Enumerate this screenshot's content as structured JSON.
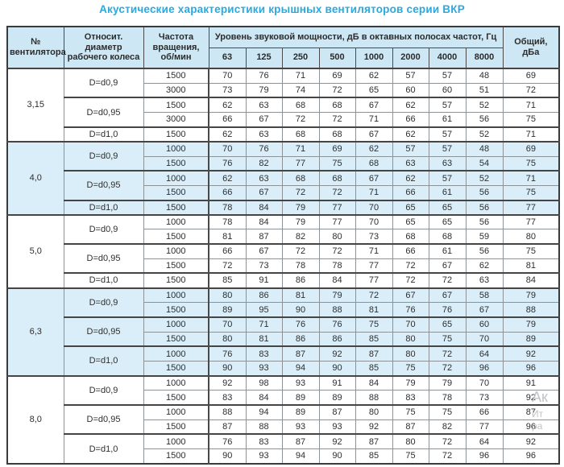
{
  "page": {
    "title": "Акустические характеристики крышных вентиляторов серии ВКР"
  },
  "colors": {
    "title_accent": "#2aa9e0",
    "header_bg": "#cee7f4",
    "band_row_bg": "#daeef9",
    "border_dark": "#454545",
    "border_light": "#8d9296"
  },
  "table": {
    "headers": {
      "fan": "№ вентилятора",
      "diameter": "Относит. диаметр рабочего колеса",
      "speed": "Частота вращения, об/мин",
      "octave_title": "Уровень звуковой мощности, дБ в октавных полосах частот, Гц",
      "total": "Общий, дБа"
    },
    "octave_labels": [
      "63",
      "125",
      "250",
      "500",
      "1000",
      "2000",
      "4000",
      "8000"
    ],
    "groups": [
      {
        "fan": "3,15",
        "shaded": false,
        "subgroups": [
          {
            "diameter": "D=d0,9",
            "rows": [
              {
                "speed": "1500",
                "values": [
                  70,
                  76,
                  71,
                  69,
                  62,
                  57,
                  57,
                  48
                ],
                "total": 69
              },
              {
                "speed": "3000",
                "values": [
                  73,
                  79,
                  74,
                  72,
                  65,
                  60,
                  60,
                  51
                ],
                "total": 72
              }
            ]
          },
          {
            "diameter": "D=d0,95",
            "rows": [
              {
                "speed": "1500",
                "values": [
                  62,
                  63,
                  68,
                  68,
                  67,
                  62,
                  57,
                  52
                ],
                "total": 71
              },
              {
                "speed": "3000",
                "values": [
                  66,
                  67,
                  72,
                  72,
                  71,
                  66,
                  61,
                  56
                ],
                "total": 75
              }
            ]
          },
          {
            "diameter": "D=d1,0",
            "rows": [
              {
                "speed": "1500",
                "values": [
                  62,
                  63,
                  68,
                  68,
                  67,
                  62,
                  57,
                  52
                ],
                "total": 71
              }
            ]
          }
        ]
      },
      {
        "fan": "4,0",
        "shaded": true,
        "subgroups": [
          {
            "diameter": "D=d0,9",
            "rows": [
              {
                "speed": "1000",
                "values": [
                  70,
                  76,
                  71,
                  69,
                  62,
                  57,
                  57,
                  48
                ],
                "total": 69
              },
              {
                "speed": "1500",
                "values": [
                  76,
                  82,
                  77,
                  75,
                  68,
                  63,
                  63,
                  54
                ],
                "total": 75
              }
            ]
          },
          {
            "diameter": "D=d0,95",
            "rows": [
              {
                "speed": "1000",
                "values": [
                  62,
                  63,
                  68,
                  68,
                  67,
                  62,
                  57,
                  52
                ],
                "total": 71
              },
              {
                "speed": "1500",
                "values": [
                  66,
                  67,
                  72,
                  72,
                  71,
                  66,
                  61,
                  56
                ],
                "total": 75
              }
            ]
          },
          {
            "diameter": "D=d1,0",
            "rows": [
              {
                "speed": "1500",
                "values": [
                  78,
                  84,
                  79,
                  77,
                  70,
                  65,
                  65,
                  56
                ],
                "total": 77
              }
            ]
          }
        ]
      },
      {
        "fan": "5,0",
        "shaded": false,
        "subgroups": [
          {
            "diameter": "D=d0,9",
            "rows": [
              {
                "speed": "1000",
                "values": [
                  78,
                  84,
                  79,
                  77,
                  70,
                  65,
                  65,
                  56
                ],
                "total": 77
              },
              {
                "speed": "1500",
                "values": [
                  81,
                  87,
                  82,
                  80,
                  73,
                  68,
                  68,
                  59
                ],
                "total": 80
              }
            ]
          },
          {
            "diameter": "D=d0,95",
            "rows": [
              {
                "speed": "1000",
                "values": [
                  66,
                  67,
                  72,
                  72,
                  71,
                  66,
                  61,
                  56
                ],
                "total": 75
              },
              {
                "speed": "1500",
                "values": [
                  72,
                  73,
                  78,
                  78,
                  77,
                  72,
                  67,
                  62
                ],
                "total": 81
              }
            ]
          },
          {
            "diameter": "D=d1,0",
            "rows": [
              {
                "speed": "1500",
                "values": [
                  85,
                  91,
                  86,
                  84,
                  77,
                  72,
                  72,
                  63
                ],
                "total": 84
              }
            ]
          }
        ]
      },
      {
        "fan": "6,3",
        "shaded": true,
        "subgroups": [
          {
            "diameter": "D=d0,9",
            "rows": [
              {
                "speed": "1000",
                "values": [
                  80,
                  86,
                  81,
                  79,
                  72,
                  67,
                  67,
                  58
                ],
                "total": 79
              },
              {
                "speed": "1500",
                "values": [
                  89,
                  95,
                  90,
                  88,
                  81,
                  76,
                  76,
                  67
                ],
                "total": 88
              }
            ]
          },
          {
            "diameter": "D=d0,95",
            "rows": [
              {
                "speed": "1000",
                "values": [
                  70,
                  71,
                  76,
                  76,
                  75,
                  70,
                  65,
                  60
                ],
                "total": 79
              },
              {
                "speed": "1500",
                "values": [
                  80,
                  81,
                  86,
                  86,
                  85,
                  80,
                  75,
                  70
                ],
                "total": 89
              }
            ]
          },
          {
            "diameter": "D=d1,0",
            "rows": [
              {
                "speed": "1000",
                "values": [
                  76,
                  83,
                  87,
                  92,
                  87,
                  80,
                  72,
                  64
                ],
                "total": 92
              },
              {
                "speed": "1500",
                "values": [
                  90,
                  93,
                  94,
                  90,
                  85,
                  75,
                  72,
                  96
                ],
                "total": 96
              }
            ]
          }
        ]
      },
      {
        "fan": "8,0",
        "shaded": false,
        "subgroups": [
          {
            "diameter": "D=d0,9",
            "rows": [
              {
                "speed": "1000",
                "values": [
                  92,
                  98,
                  93,
                  91,
                  84,
                  79,
                  79,
                  70
                ],
                "total": 91
              },
              {
                "speed": "1500",
                "values": [
                  83,
                  84,
                  89,
                  89,
                  88,
                  83,
                  78,
                  73
                ],
                "total": 92
              }
            ]
          },
          {
            "diameter": "D=d0,95",
            "rows": [
              {
                "speed": "1000",
                "values": [
                  88,
                  94,
                  89,
                  87,
                  80,
                  75,
                  75,
                  66
                ],
                "total": 87
              },
              {
                "speed": "1500",
                "values": [
                  87,
                  88,
                  93,
                  93,
                  92,
                  87,
                  82,
                  77
                ],
                "total": 96
              }
            ]
          },
          {
            "diameter": "D=d1,0",
            "rows": [
              {
                "speed": "1000",
                "values": [
                  76,
                  83,
                  87,
                  92,
                  87,
                  80,
                  72,
                  64
                ],
                "total": 92
              },
              {
                "speed": "1500",
                "values": [
                  90,
                  93,
                  94,
                  90,
                  85,
                  75,
                  72,
                  96
                ],
                "total": 96
              }
            ]
          }
        ]
      }
    ]
  },
  "watermark": {
    "lines": [
      "Ак",
      "Ит",
      "ра"
    ]
  }
}
